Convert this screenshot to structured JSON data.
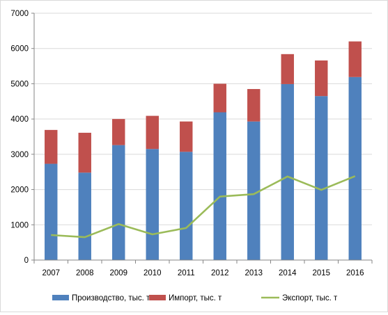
{
  "chart_data": {
    "type": "bar",
    "stacked": true,
    "title": "",
    "xlabel": "",
    "ylabel": "",
    "ylim": [
      0,
      7000
    ],
    "yticks": [
      0,
      1000,
      2000,
      3000,
      4000,
      5000,
      6000,
      7000
    ],
    "grid": true,
    "legend_position": "bottom",
    "categories": [
      "2007",
      "2008",
      "2009",
      "2010",
      "2011",
      "2012",
      "2013",
      "2014",
      "2015",
      "2016"
    ],
    "series": [
      {
        "name": "Производство, тыс. т",
        "kind": "bar",
        "color": "#4f81bd",
        "values": [
          2730,
          2480,
          3260,
          3150,
          3070,
          4190,
          3930,
          4990,
          4650,
          5190
        ]
      },
      {
        "name": "Импорт, тыс. т",
        "kind": "bar",
        "color": "#c0504d",
        "values": [
          960,
          1130,
          740,
          940,
          860,
          810,
          920,
          850,
          1010,
          1010
        ]
      },
      {
        "name": "Экспорт, тыс. т",
        "kind": "line",
        "color": "#9bbb59",
        "values": [
          710,
          650,
          1020,
          730,
          910,
          1800,
          1870,
          2370,
          1990,
          2380
        ]
      }
    ]
  }
}
